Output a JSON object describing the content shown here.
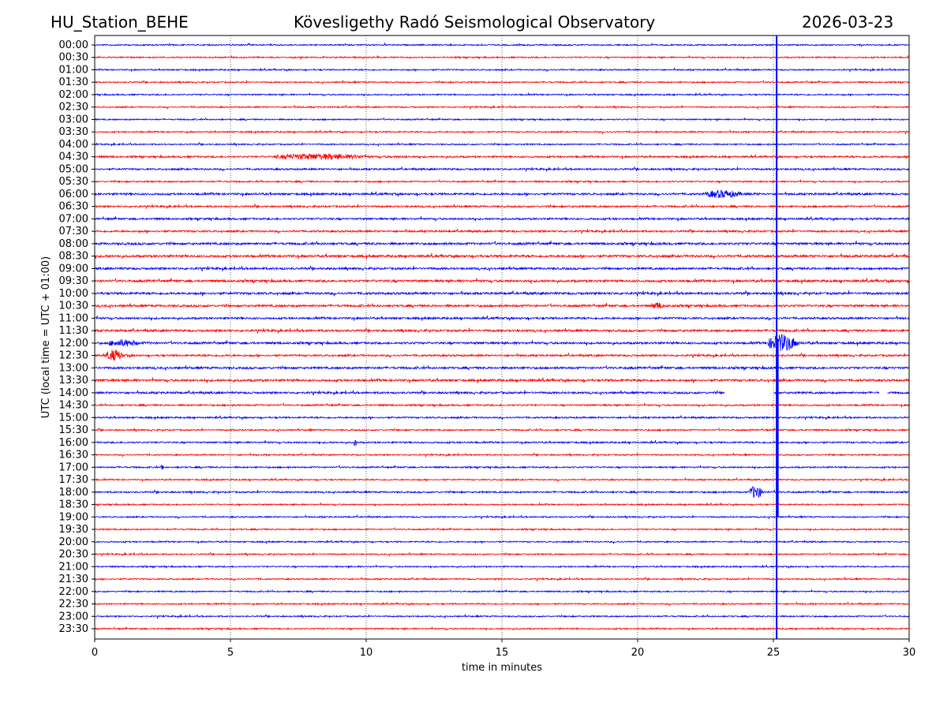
{
  "header": {
    "station": "HU_Station_BEHE",
    "observatory": "Kövesligethy Radó Seismological Observatory",
    "date": "2026-03-23"
  },
  "chart_data": {
    "type": "line",
    "title": "Kövesligethy Radó Seismological Observatory",
    "xlabel": "time in minutes",
    "ylabel": "UTC (local time = UTC + 01:00)",
    "xlim": [
      0,
      30
    ],
    "xticks": [
      "0",
      "5",
      "10",
      "15",
      "20",
      "25",
      "30"
    ],
    "grid": "vertical dotted at 5-minute intervals",
    "colors": {
      "even_rows": "#0000ff",
      "odd_rows": "#ff0000"
    },
    "rows": [
      "00:00",
      "00:30",
      "01:00",
      "01:30",
      "02:00",
      "02:30",
      "03:00",
      "03:30",
      "04:00",
      "04:30",
      "05:00",
      "05:30",
      "06:00",
      "06:30",
      "07:00",
      "07:30",
      "08:00",
      "08:30",
      "09:00",
      "09:30",
      "10:00",
      "10:30",
      "11:00",
      "11:30",
      "12:00",
      "12:30",
      "13:00",
      "13:30",
      "14:00",
      "14:30",
      "15:00",
      "15:30",
      "16:00",
      "16:30",
      "17:00",
      "17:30",
      "18:00",
      "18:30",
      "19:00",
      "19:30",
      "20:00",
      "20:30",
      "21:00",
      "21:30",
      "22:00",
      "22:30",
      "23:00",
      "23:30"
    ],
    "noise_level": [
      1,
      1,
      1,
      1,
      1,
      1,
      1,
      1,
      1,
      1.3,
      1.3,
      1.1,
      1.5,
      1.3,
      1.4,
      1.4,
      1.7,
      1.7,
      1.6,
      1.7,
      1.7,
      1.6,
      1.5,
      1.6,
      1.6,
      1.4,
      1.6,
      1.7,
      1.5,
      1.2,
      1.2,
      1.1,
      1.2,
      1,
      1.1,
      1,
      1.2,
      1,
      1,
      1,
      1,
      1,
      1,
      1,
      1,
      1,
      1,
      1
    ],
    "events": [
      {
        "row": "04:30",
        "start": 6.6,
        "end": 11.8,
        "amplitude": 2.2
      },
      {
        "row": "06:00",
        "start": 22.5,
        "end": 24.5,
        "amplitude": 2.5
      },
      {
        "row": "10:30",
        "start": 20.5,
        "end": 21.2,
        "amplitude": 2
      },
      {
        "row": "12:00",
        "start": 0.5,
        "end": 2.2,
        "amplitude": 2
      },
      {
        "row": "12:00",
        "start": 24.8,
        "end": 26.5,
        "amplitude": 6
      },
      {
        "row": "12:30",
        "start": 0.4,
        "end": 1.4,
        "amplitude": 4.5
      },
      {
        "row": "16:00",
        "start": 9.55,
        "end": 9.7,
        "amplitude": 5
      },
      {
        "row": "17:00",
        "start": 2.45,
        "end": 2.6,
        "amplitude": 4
      },
      {
        "row": "18:00",
        "start": 24.1,
        "end": 24.9,
        "amplitude": 6
      }
    ],
    "gaps": [
      {
        "row": "14:00",
        "start": 23.2,
        "end": 25.0
      },
      {
        "row": "14:00",
        "start": 28.9,
        "end": 29.2
      }
    ],
    "vertical_spike": {
      "minute": 25.12,
      "color": "#0000ff"
    }
  }
}
